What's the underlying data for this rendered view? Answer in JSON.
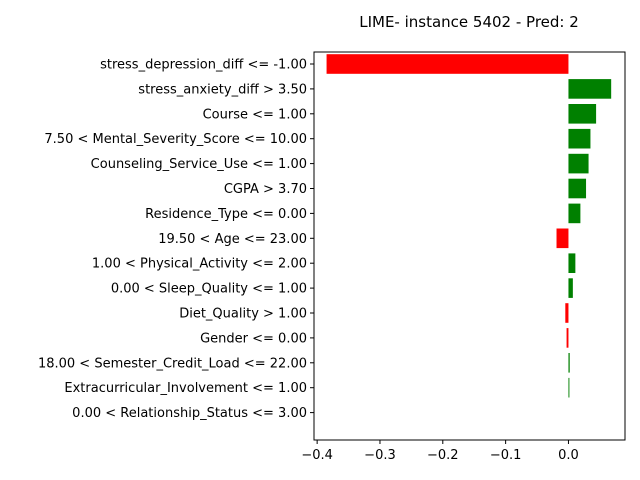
{
  "chart_data": {
    "type": "bar",
    "orientation": "horizontal",
    "title": "LIME- instance 5402 - Pred: 2",
    "xlabel": "",
    "ylabel": "",
    "xlim": [
      -0.405,
      0.09
    ],
    "xticks": [
      -0.4,
      -0.3,
      -0.2,
      -0.1,
      0.0
    ],
    "xtick_labels": [
      "−0.4",
      "−0.3",
      "−0.2",
      "−0.1",
      "0.0"
    ],
    "positive_color": "#008000",
    "negative_color": "#ff0000",
    "categories": [
      "stress_depression_diff <= -1.00",
      "stress_anxiety_diff > 3.50",
      "Course <= 1.00",
      "7.50 < Mental_Severity_Score <= 10.00",
      "Counseling_Service_Use <= 1.00",
      "CGPA > 3.70",
      "Residence_Type <= 0.00",
      "19.50 < Age <= 23.00",
      "1.00 < Physical_Activity <= 2.00",
      "0.00 < Sleep_Quality <= 1.00",
      "Diet_Quality > 1.00",
      "Gender <= 0.00",
      "18.00 < Semester_Credit_Load <= 22.00",
      "Extracurricular_Involvement <= 1.00",
      "0.00 < Relationship_Status <= 3.00"
    ],
    "values": [
      -0.385,
      0.068,
      0.044,
      0.035,
      0.032,
      0.028,
      0.019,
      -0.019,
      0.011,
      0.007,
      -0.005,
      -0.003,
      0.002,
      0.0015,
      0.0
    ]
  }
}
